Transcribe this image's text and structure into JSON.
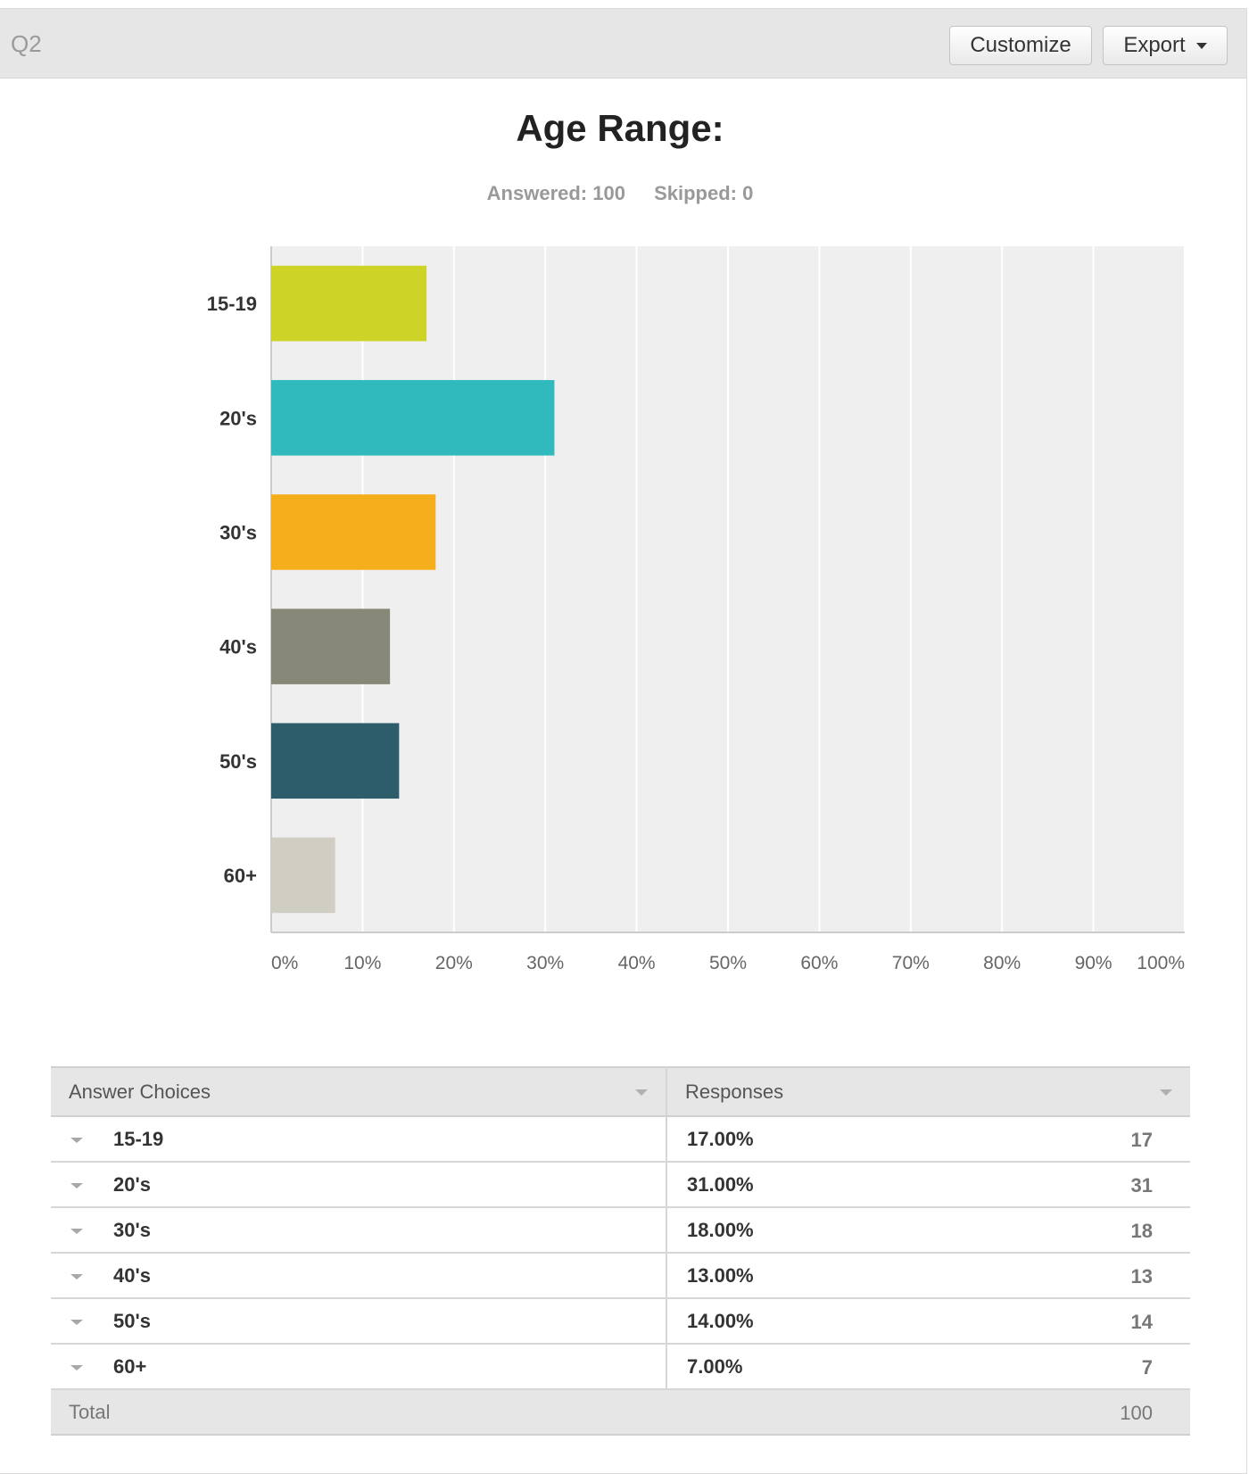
{
  "header": {
    "question_number": "Q2",
    "customize_label": "Customize",
    "export_label": "Export"
  },
  "question": {
    "title": "Age Range:",
    "answered": "Answered: 100",
    "skipped": "Skipped: 0"
  },
  "chart_data": {
    "type": "bar",
    "orientation": "horizontal",
    "categories": [
      "15-19",
      "20's",
      "30's",
      "40's",
      "50's",
      "60+"
    ],
    "values": [
      17,
      31,
      18,
      13,
      14,
      7
    ],
    "colors": [
      "#cdd427",
      "#30babd",
      "#f6ae1c",
      "#888878",
      "#2d5d6b",
      "#d0cec2"
    ],
    "xlim": [
      0,
      100
    ],
    "x_ticks": [
      "0%",
      "10%",
      "20%",
      "30%",
      "40%",
      "50%",
      "60%",
      "70%",
      "80%",
      "90%",
      "100%"
    ],
    "grid": true,
    "title": "",
    "xlabel": "",
    "ylabel": ""
  },
  "table": {
    "headers": [
      "Answer Choices",
      "Responses"
    ],
    "rows": [
      {
        "choice": "15-19",
        "percent": "17.00%",
        "count": "17"
      },
      {
        "choice": "20's",
        "percent": "31.00%",
        "count": "31"
      },
      {
        "choice": "30's",
        "percent": "18.00%",
        "count": "18"
      },
      {
        "choice": "40's",
        "percent": "13.00%",
        "count": "13"
      },
      {
        "choice": "50's",
        "percent": "14.00%",
        "count": "14"
      },
      {
        "choice": "60+",
        "percent": "7.00%",
        "count": "7"
      }
    ],
    "total_label": "Total",
    "total_value": "100"
  }
}
